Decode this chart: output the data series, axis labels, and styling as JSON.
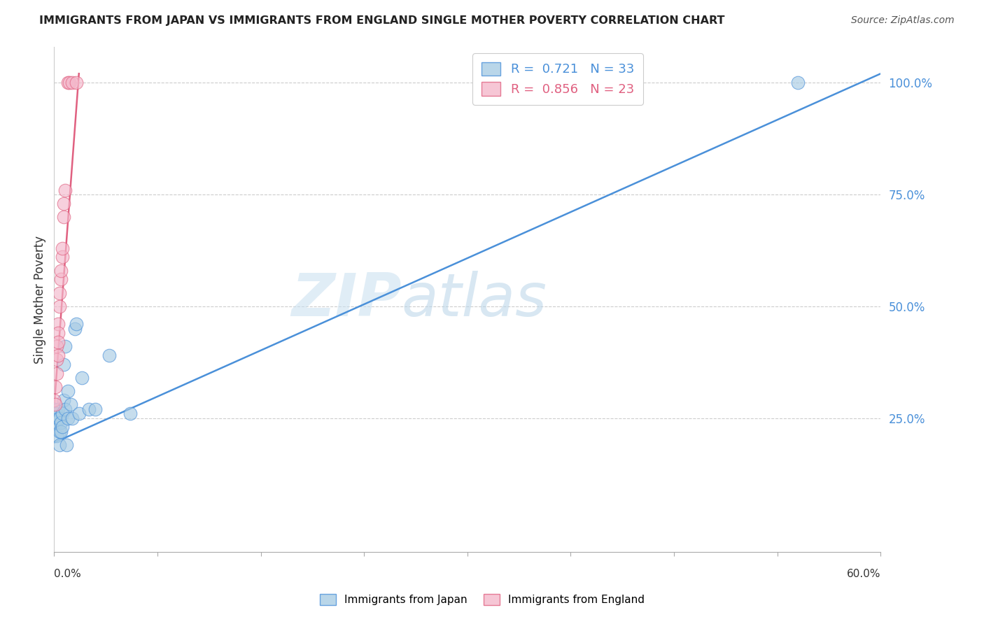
{
  "title": "IMMIGRANTS FROM JAPAN VS IMMIGRANTS FROM ENGLAND SINGLE MOTHER POVERTY CORRELATION CHART",
  "source": "Source: ZipAtlas.com",
  "ylabel": "Single Mother Poverty",
  "legend_japan": "Immigrants from Japan",
  "legend_england": "Immigrants from England",
  "R_japan": 0.721,
  "N_japan": 33,
  "R_england": 0.856,
  "N_england": 23,
  "color_japan": "#a8cce4",
  "color_england": "#f4b8cb",
  "line_color_japan": "#4a90d9",
  "line_color_england": "#e06080",
  "watermark_zip": "ZIP",
  "watermark_atlas": "atlas",
  "xlim": [
    0.0,
    0.6
  ],
  "ylim": [
    -0.05,
    1.08
  ],
  "yticks": [
    0.25,
    0.5,
    0.75,
    1.0
  ],
  "ytick_labels": [
    "25.0%",
    "50.0%",
    "75.0%",
    "100.0%"
  ],
  "japan_x": [
    0.0,
    0.001,
    0.001,
    0.002,
    0.002,
    0.002,
    0.003,
    0.003,
    0.004,
    0.004,
    0.004,
    0.005,
    0.005,
    0.006,
    0.006,
    0.007,
    0.007,
    0.008,
    0.008,
    0.009,
    0.01,
    0.01,
    0.012,
    0.013,
    0.015,
    0.016,
    0.018,
    0.02,
    0.025,
    0.03,
    0.04,
    0.055,
    0.54
  ],
  "japan_y": [
    0.27,
    0.26,
    0.24,
    0.26,
    0.24,
    0.21,
    0.27,
    0.25,
    0.25,
    0.22,
    0.19,
    0.24,
    0.22,
    0.26,
    0.23,
    0.29,
    0.37,
    0.41,
    0.27,
    0.19,
    0.31,
    0.25,
    0.28,
    0.25,
    0.45,
    0.46,
    0.26,
    0.34,
    0.27,
    0.27,
    0.39,
    0.26,
    1.0
  ],
  "england_x": [
    0.0,
    0.001,
    0.001,
    0.002,
    0.002,
    0.002,
    0.003,
    0.003,
    0.003,
    0.003,
    0.004,
    0.004,
    0.005,
    0.005,
    0.006,
    0.006,
    0.007,
    0.007,
    0.008,
    0.01,
    0.011,
    0.013,
    0.016
  ],
  "england_y": [
    0.29,
    0.32,
    0.28,
    0.41,
    0.38,
    0.35,
    0.46,
    0.44,
    0.42,
    0.39,
    0.53,
    0.5,
    0.56,
    0.58,
    0.61,
    0.63,
    0.7,
    0.73,
    0.76,
    1.0,
    1.0,
    1.0,
    1.0
  ],
  "japan_line_x0": 0.0,
  "japan_line_y0": 0.195,
  "japan_line_x1": 0.6,
  "japan_line_y1": 1.02,
  "england_line_x0": 0.0,
  "england_line_y0": 0.275,
  "england_line_x1": 0.018,
  "england_line_y1": 1.02
}
